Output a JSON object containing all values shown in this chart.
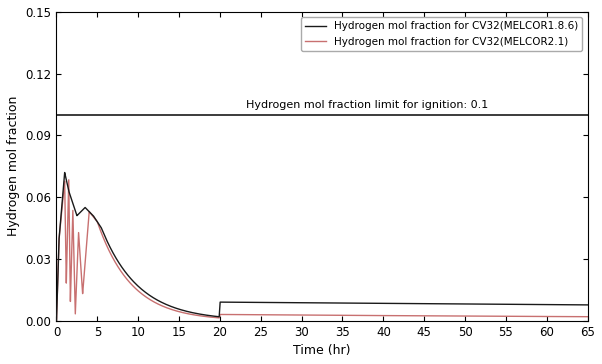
{
  "title": "",
  "xlabel": "Time (hr)",
  "ylabel": "Hydrogen mol fraction",
  "xlim": [
    0,
    65
  ],
  "ylim": [
    0,
    0.15
  ],
  "yticks": [
    0.0,
    0.03,
    0.06,
    0.09,
    0.12,
    0.15
  ],
  "xticks": [
    0,
    5,
    10,
    15,
    20,
    25,
    30,
    35,
    40,
    45,
    50,
    55,
    60,
    65
  ],
  "ignition_limit": 0.1,
  "ignition_label": "Hydrogen mol fraction limit for ignition: 0.1",
  "legend_melcor186": "Hydrogen mol fraction for CV32(MELCOR1.8.6)",
  "legend_melcor21": "Hydrogen mol fraction for CV32(MELCOR2.1)",
  "color_melcor186": "#1a1a1a",
  "color_melcor21": "#c87070",
  "background_color": "#ffffff"
}
